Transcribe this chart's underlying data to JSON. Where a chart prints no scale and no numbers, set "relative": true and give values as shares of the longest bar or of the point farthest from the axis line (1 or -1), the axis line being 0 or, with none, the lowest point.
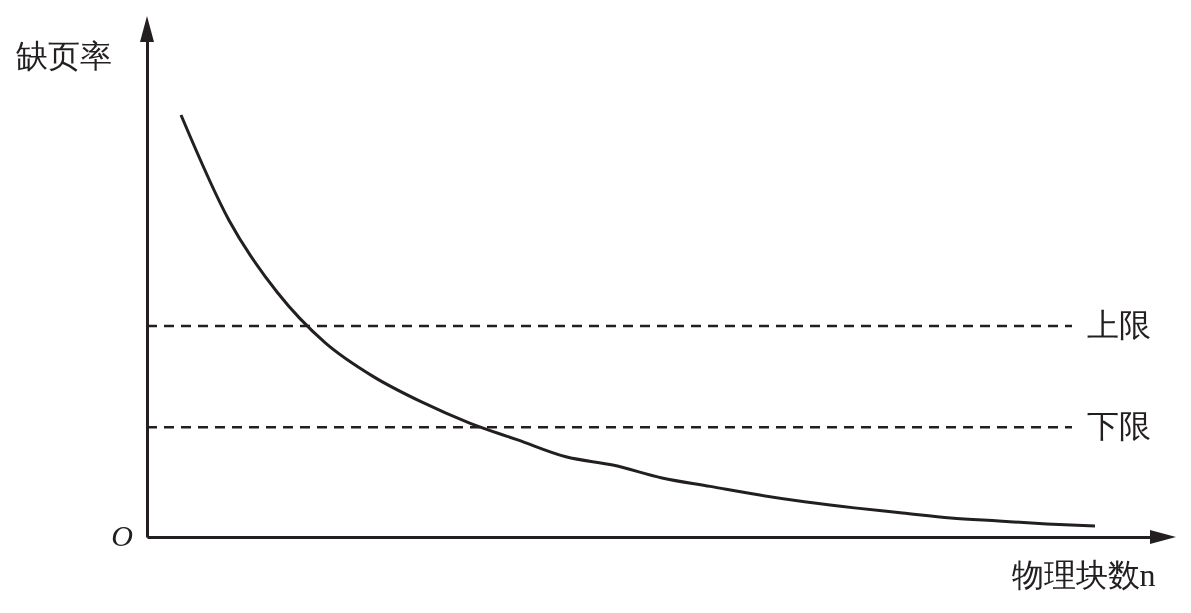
{
  "chart_data": {
    "type": "line",
    "relative": true,
    "ylabel": "缺页率",
    "xlabel": "物理块数n",
    "categories": [
      null,
      null,
      null,
      null,
      null,
      null,
      null,
      null,
      null,
      null,
      null,
      null,
      null,
      null,
      null,
      null,
      null,
      null,
      null,
      null
    ],
    "series": [
      {
        "color": "#231f20",
        "values": [
          1,
          0.75,
          0.58,
          0.46,
          0.38,
          0.32,
          0.27,
          0.23,
          0.19,
          0.17,
          0.14,
          0.12,
          0.1,
          0.083,
          0.069,
          0.057,
          0.045,
          0.038,
          0.031,
          0.026
        ]
      }
    ],
    "ref_lines": [
      {
        "axis": "y",
        "value": 0.5,
        "label": "上限",
        "line_style": "dashed",
        "color": "#231f20"
      },
      {
        "axis": "y",
        "value": 0.26,
        "label": "下限",
        "line_style": "dashed",
        "color": "#231f20"
      }
    ],
    "annotations": [
      "O"
    ],
    "line_style": "solid"
  }
}
